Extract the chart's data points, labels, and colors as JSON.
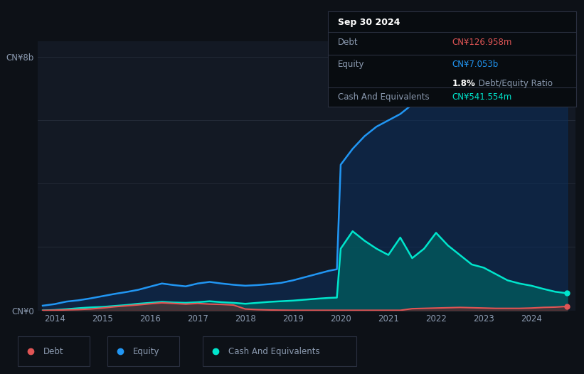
{
  "bg_color": "#0d1117",
  "plot_bg_color": "#131924",
  "grid_color": "#252d3a",
  "text_color": "#8b9ab0",
  "debt_color": "#e05555",
  "equity_color": "#2196f3",
  "cash_color": "#00e5cc",
  "ylabel_top": "CN¥8b",
  "ylabel_bottom": "CN¥0",
  "x_ticks": [
    2014,
    2015,
    2016,
    2017,
    2018,
    2019,
    2020,
    2021,
    2022,
    2023,
    2024
  ],
  "ylim_max": 8500000000,
  "xlim_start": 2013.65,
  "xlim_end": 2024.92,
  "tooltip_date": "Sep 30 2024",
  "tooltip_debt_label": "Debt",
  "tooltip_debt_value": "CN¥126.958m",
  "tooltip_equity_label": "Equity",
  "tooltip_equity_value": "CN¥7.053b",
  "tooltip_ratio_bold": "1.8%",
  "tooltip_ratio_rest": " Debt/Equity Ratio",
  "tooltip_cash_label": "Cash And Equivalents",
  "tooltip_cash_value": "CN¥541.554m",
  "legend_labels": [
    "Debt",
    "Equity",
    "Cash And Equivalents"
  ],
  "time_points": [
    2013.75,
    2014.0,
    2014.25,
    2014.5,
    2014.75,
    2015.0,
    2015.25,
    2015.5,
    2015.75,
    2016.0,
    2016.25,
    2016.5,
    2016.75,
    2017.0,
    2017.25,
    2017.5,
    2017.75,
    2018.0,
    2018.25,
    2018.5,
    2018.75,
    2019.0,
    2019.25,
    2019.5,
    2019.75,
    2019.92,
    2020.0,
    2020.25,
    2020.5,
    2020.75,
    2021.0,
    2021.25,
    2021.5,
    2021.75,
    2022.0,
    2022.25,
    2022.5,
    2022.75,
    2023.0,
    2023.25,
    2023.5,
    2023.75,
    2024.0,
    2024.25,
    2024.5,
    2024.75
  ],
  "equity": [
    150000000,
    200000000,
    280000000,
    320000000,
    380000000,
    450000000,
    520000000,
    580000000,
    650000000,
    750000000,
    850000000,
    800000000,
    760000000,
    850000000,
    900000000,
    850000000,
    810000000,
    780000000,
    800000000,
    830000000,
    870000000,
    950000000,
    1050000000,
    1150000000,
    1250000000,
    1300000000,
    4600000000,
    5100000000,
    5500000000,
    5800000000,
    6000000000,
    6200000000,
    6500000000,
    6600000000,
    6700000000,
    6850000000,
    6900000000,
    6800000000,
    6900000000,
    7100000000,
    7300000000,
    7450000000,
    7500000000,
    7580000000,
    7650000000,
    7053000000
  ],
  "cash": [
    0,
    15000000,
    40000000,
    70000000,
    95000000,
    110000000,
    140000000,
    170000000,
    210000000,
    240000000,
    270000000,
    250000000,
    240000000,
    260000000,
    290000000,
    260000000,
    240000000,
    210000000,
    240000000,
    270000000,
    290000000,
    310000000,
    340000000,
    370000000,
    395000000,
    405000000,
    1950000000,
    2500000000,
    2200000000,
    1950000000,
    1750000000,
    2300000000,
    1650000000,
    1950000000,
    2450000000,
    2050000000,
    1750000000,
    1450000000,
    1350000000,
    1150000000,
    950000000,
    850000000,
    780000000,
    680000000,
    590000000,
    541554000
  ],
  "debt": [
    0,
    8000000,
    18000000,
    28000000,
    45000000,
    75000000,
    115000000,
    145000000,
    175000000,
    210000000,
    240000000,
    220000000,
    200000000,
    220000000,
    200000000,
    190000000,
    170000000,
    45000000,
    25000000,
    15000000,
    8000000,
    4000000,
    4000000,
    4000000,
    4000000,
    4000000,
    4000000,
    4000000,
    4000000,
    4000000,
    4000000,
    4000000,
    55000000,
    65000000,
    75000000,
    85000000,
    95000000,
    85000000,
    75000000,
    65000000,
    65000000,
    65000000,
    75000000,
    95000000,
    105000000,
    126958000
  ]
}
